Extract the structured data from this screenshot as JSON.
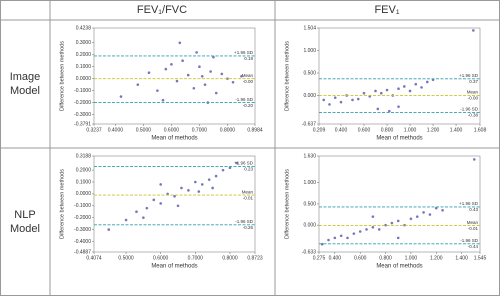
{
  "table": {
    "header": [
      "FEV₁/FVC",
      "FEV₁"
    ],
    "rows": [
      "Image Model",
      "NLP Model"
    ]
  },
  "chart_data": [
    {
      "type": "scatter",
      "x_label": "Mean of methods",
      "y_label": "Difference between methods",
      "color": "#4848a8",
      "xlim": [
        0.3237,
        0.8984
      ],
      "xticks": [
        0.3237,
        {
          "value": 0.4,
          "label": "0.4000"
        },
        {
          "value": 0.5,
          "label": "0.5000"
        },
        {
          "value": 0.6,
          "label": "0.6000"
        },
        {
          "value": 0.7,
          "label": "0.7000"
        },
        {
          "value": 0.8,
          "label": "0.8000"
        },
        0.8984
      ],
      "ylim": [
        -0.3791,
        0.4238
      ],
      "yticks": [
        0.4238,
        {
          "value": 0.3,
          "label": "0.3000"
        },
        {
          "value": 0.2,
          "label": "0.2000"
        },
        {
          "value": 0.1,
          "label": "0.1000"
        },
        {
          "value": 0,
          "label": "0.0000"
        },
        {
          "value": -0.1,
          "label": "-0.1000"
        },
        {
          "value": -0.2,
          "label": "-0.2000"
        },
        {
          "value": -0.3,
          "label": "-0.3000"
        },
        -0.3791
      ],
      "reference_lines": [
        {
          "label": "+1.96 SD",
          "value": 0.19
        },
        {
          "label": "Mean",
          "value": 0,
          "value_label": "-0.00"
        },
        {
          "label": "-1.96 SD",
          "value": -0.2,
          "value_label": "-0.20"
        }
      ],
      "x": [
        0.42,
        0.48,
        0.52,
        0.55,
        0.58,
        0.6,
        0.62,
        0.64,
        0.66,
        0.68,
        0.7,
        0.71,
        0.72,
        0.74,
        0.75,
        0.76,
        0.78,
        0.8,
        0.82,
        0.85,
        0.63,
        0.69,
        0.73,
        0.57
      ],
      "values": [
        -0.15,
        -0.05,
        0.05,
        -0.1,
        0.08,
        0.12,
        -0.02,
        0.15,
        0.03,
        -0.08,
        0.1,
        0.02,
        -0.05,
        0.06,
        0.18,
        -0.12,
        0.04,
        0.0,
        -0.03,
        0.02,
        0.3,
        0.22,
        -0.2,
        -0.18
      ]
    },
    {
      "type": "scatter",
      "x_label": "Mean of methods",
      "y_label": "Difference between methods",
      "color": "#4848a8",
      "xlim": [
        0.209,
        1.608
      ],
      "xticks": [
        0.209,
        {
          "value": 0.4,
          "label": "0.400"
        },
        {
          "value": 0.6,
          "label": "0.600"
        },
        {
          "value": 0.8,
          "label": "0.800"
        },
        {
          "value": 1,
          "label": "1.000"
        },
        {
          "value": 1.2,
          "label": "1.200"
        },
        {
          "value": 1.4,
          "label": "1.400"
        },
        1.608
      ],
      "ylim": [
        -0.637,
        1.504
      ],
      "yticks": [
        1.504,
        {
          "value": 1,
          "label": "1.000"
        },
        {
          "value": 0.5,
          "label": "0.500"
        },
        {
          "value": 0,
          "label": "0.000"
        },
        -0.637
      ],
      "reference_lines": [
        {
          "label": "+1.96 SD",
          "value": 0.37
        },
        {
          "label": "Mean",
          "value": 0,
          "value_label": "-0.00"
        },
        {
          "label": "-1.96 SD",
          "value": -0.38
        }
      ],
      "x": [
        0.25,
        0.3,
        0.35,
        0.4,
        0.45,
        0.5,
        0.55,
        0.6,
        0.65,
        0.7,
        0.75,
        0.8,
        0.85,
        0.9,
        0.95,
        1.0,
        1.05,
        1.1,
        1.15,
        1.2,
        0.72,
        0.82,
        0.9,
        1.55
      ],
      "values": [
        -0.1,
        -0.2,
        -0.05,
        -0.15,
        0.0,
        -0.1,
        -0.08,
        0.05,
        -0.02,
        0.1,
        0.05,
        0.12,
        0.0,
        0.15,
        0.2,
        0.1,
        0.25,
        0.18,
        0.3,
        0.35,
        -0.3,
        -0.35,
        -0.25,
        1.45
      ]
    },
    {
      "type": "scatter",
      "x_label": "Mean of methods",
      "y_label": "Difference between methods",
      "color": "#4848a8",
      "xlim": [
        0.4074,
        0.8723
      ],
      "xticks": [
        0.4074,
        {
          "value": 0.5,
          "label": "0.5000"
        },
        {
          "value": 0.6,
          "label": "0.6000"
        },
        {
          "value": 0.7,
          "label": "0.7000"
        },
        {
          "value": 0.8,
          "label": "0.8000"
        },
        0.8723
      ],
      "ylim": [
        -0.4887,
        0.3188
      ],
      "yticks": [
        0.3188,
        {
          "value": 0.2,
          "label": "0.2000"
        },
        {
          "value": 0.1,
          "label": "0.1000"
        },
        {
          "value": 0,
          "label": "0.0000"
        },
        {
          "value": -0.1,
          "label": "-0.1000"
        },
        {
          "value": -0.2,
          "label": "-0.2000"
        },
        {
          "value": -0.3,
          "label": "-0.3000"
        },
        {
          "value": -0.4,
          "label": "-0.4000"
        },
        -0.4887
      ],
      "reference_lines": [
        {
          "label": "+1.96 SD",
          "value": 0.23
        },
        {
          "label": "Mean",
          "value": -0.01
        },
        {
          "label": "-1.96 SD",
          "value": -0.26
        }
      ],
      "x": [
        0.45,
        0.5,
        0.53,
        0.56,
        0.58,
        0.6,
        0.62,
        0.64,
        0.66,
        0.68,
        0.7,
        0.72,
        0.74,
        0.76,
        0.78,
        0.8,
        0.82,
        0.55,
        0.65,
        0.71,
        0.75,
        0.6
      ],
      "values": [
        -0.3,
        -0.22,
        -0.15,
        -0.12,
        -0.05,
        -0.08,
        0.0,
        -0.02,
        0.05,
        0.03,
        0.1,
        0.08,
        0.12,
        0.15,
        0.2,
        0.22,
        0.26,
        -0.2,
        -0.1,
        0.02,
        0.05,
        0.08
      ]
    },
    {
      "type": "scatter",
      "x_label": "Mean of methods",
      "y_label": "Difference between methods",
      "color": "#4848a8",
      "xlim": [
        0.275,
        1.545
      ],
      "xticks": [
        0.275,
        {
          "value": 0.4,
          "label": "0.400"
        },
        {
          "value": 0.6,
          "label": "0.600"
        },
        {
          "value": 0.8,
          "label": "0.800"
        },
        {
          "value": 1,
          "label": "1.000"
        },
        {
          "value": 1.2,
          "label": "1.200"
        },
        {
          "value": 1.4,
          "label": "1.400"
        },
        1.545
      ],
      "ylim": [
        -0.633,
        1.63
      ],
      "yticks": [
        {
          "value": 1.63,
          "label": "1.630"
        },
        {
          "value": 1,
          "label": "1.000"
        },
        {
          "value": 0.5,
          "label": "0.500"
        },
        {
          "value": 0,
          "label": "0.000"
        },
        -0.633
      ],
      "reference_lines": [
        {
          "label": "+1.96 SD",
          "value": 0.43
        },
        {
          "label": "Mean",
          "value": -0.01
        },
        {
          "label": "-1.96 SD",
          "value": -0.44
        }
      ],
      "x": [
        0.3,
        0.35,
        0.4,
        0.45,
        0.5,
        0.55,
        0.6,
        0.65,
        0.7,
        0.75,
        0.8,
        0.85,
        0.9,
        0.95,
        1.0,
        1.05,
        1.1,
        1.15,
        1.2,
        1.25,
        0.7,
        0.9,
        1.5
      ],
      "values": [
        -0.45,
        -0.35,
        -0.3,
        -0.25,
        -0.3,
        -0.2,
        -0.15,
        -0.1,
        -0.05,
        -0.1,
        0.0,
        0.05,
        0.1,
        0.0,
        0.15,
        0.2,
        0.3,
        0.25,
        0.4,
        0.35,
        0.2,
        -0.3,
        1.55
      ]
    }
  ]
}
